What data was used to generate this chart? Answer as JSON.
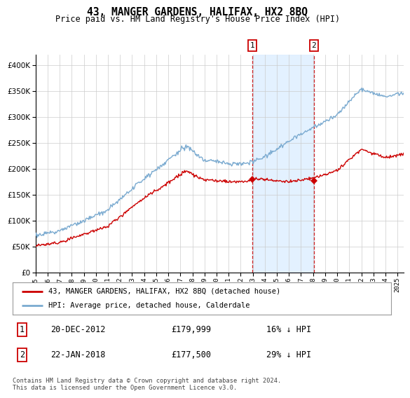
{
  "title": "43, MANGER GARDENS, HALIFAX, HX2 8BQ",
  "subtitle": "Price paid vs. HM Land Registry's House Price Index (HPI)",
  "legend_line1": "43, MANGER GARDENS, HALIFAX, HX2 8BQ (detached house)",
  "legend_line2": "HPI: Average price, detached house, Calderdale",
  "sale1_date": "20-DEC-2012",
  "sale1_price": "£179,999",
  "sale1_hpi": "16% ↓ HPI",
  "sale1_year": 2012.97,
  "sale1_value": 179999,
  "sale2_date": "22-JAN-2018",
  "sale2_price": "£177,500",
  "sale2_hpi": "29% ↓ HPI",
  "sale2_year": 2018.06,
  "sale2_value": 177500,
  "hpi_color": "#7aaad0",
  "sale_color": "#cc0000",
  "dashed_color": "#cc0000",
  "shade_color": "#ddeeff",
  "background_color": "#ffffff",
  "grid_color": "#cccccc",
  "footer": "Contains HM Land Registry data © Crown copyright and database right 2024.\nThis data is licensed under the Open Government Licence v3.0.",
  "ylim": [
    0,
    420000
  ],
  "xlim_start": 1995.0,
  "xlim_end": 2025.5
}
